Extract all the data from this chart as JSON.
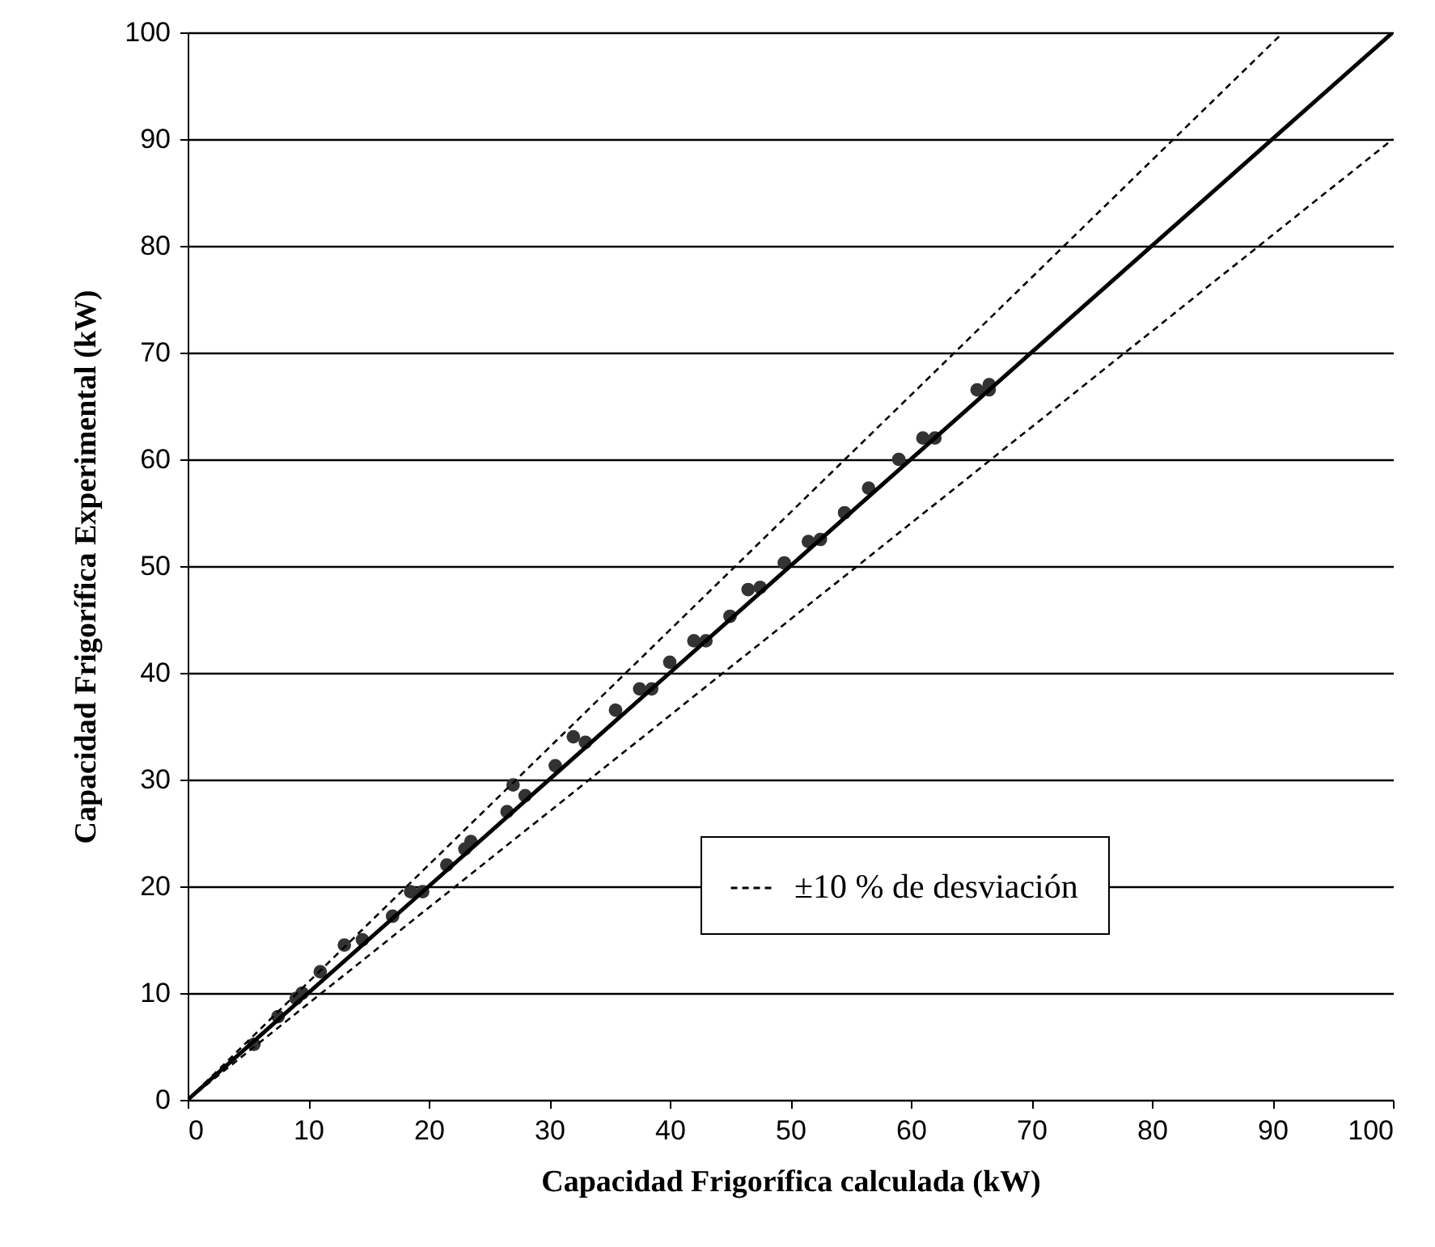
{
  "chart_data": {
    "type": "scatter",
    "xlabel": "Capacidad Frigorífica calculada (kW)",
    "ylabel": "Capacidad Frigorífica Experimental (kW)",
    "xlim": [
      0,
      100
    ],
    "ylim": [
      0,
      100
    ],
    "xticks": [
      0,
      10,
      20,
      30,
      40,
      50,
      60,
      70,
      80,
      90,
      100
    ],
    "yticks": [
      0,
      10,
      20,
      30,
      40,
      50,
      60,
      70,
      80,
      90,
      100
    ],
    "grid": "y",
    "legend": "bottom right",
    "marker": "circle",
    "series": [
      {
        "color": "#333333",
        "x": [
          5.5,
          7.5,
          9,
          9.5,
          11,
          13,
          14.5,
          17,
          18.5,
          19.5,
          21.5,
          23,
          23.5,
          26.5,
          27,
          28,
          30.5,
          32,
          33,
          35.5,
          37.5,
          38.5,
          40,
          42,
          43,
          45,
          46.5,
          47.5,
          49.5,
          51.5,
          52.5,
          54.5,
          56.5,
          59,
          61,
          62,
          65.5,
          66.5,
          66.5
        ],
        "values": [
          5.2,
          7.8,
          9.5,
          10,
          12,
          14.5,
          15,
          17.2,
          19.5,
          19.5,
          22,
          23.5,
          24.2,
          27,
          29.5,
          28.5,
          31.3,
          34,
          33.5,
          36.5,
          38.5,
          38.5,
          41,
          43,
          43,
          45.3,
          47.8,
          48,
          50.3,
          52.3,
          52.5,
          55,
          57.3,
          60,
          62,
          62,
          66.5,
          67,
          66.5
        ]
      },
      {
        "type": "line",
        "color": "#000000",
        "line_style": "solid",
        "marker": "none",
        "x": [
          0,
          100
        ],
        "values": [
          0,
          100
        ]
      },
      {
        "type": "line",
        "color": "#000000",
        "line_style": "dashed",
        "marker": "none",
        "name": "±10 % de desviación",
        "x": [
          0,
          90.9
        ],
        "values": [
          0,
          100
        ]
      },
      {
        "type": "line",
        "color": "#000000",
        "line_style": "dashed",
        "marker": "none",
        "x": [
          0,
          100
        ],
        "values": [
          0,
          90
        ]
      }
    ]
  }
}
